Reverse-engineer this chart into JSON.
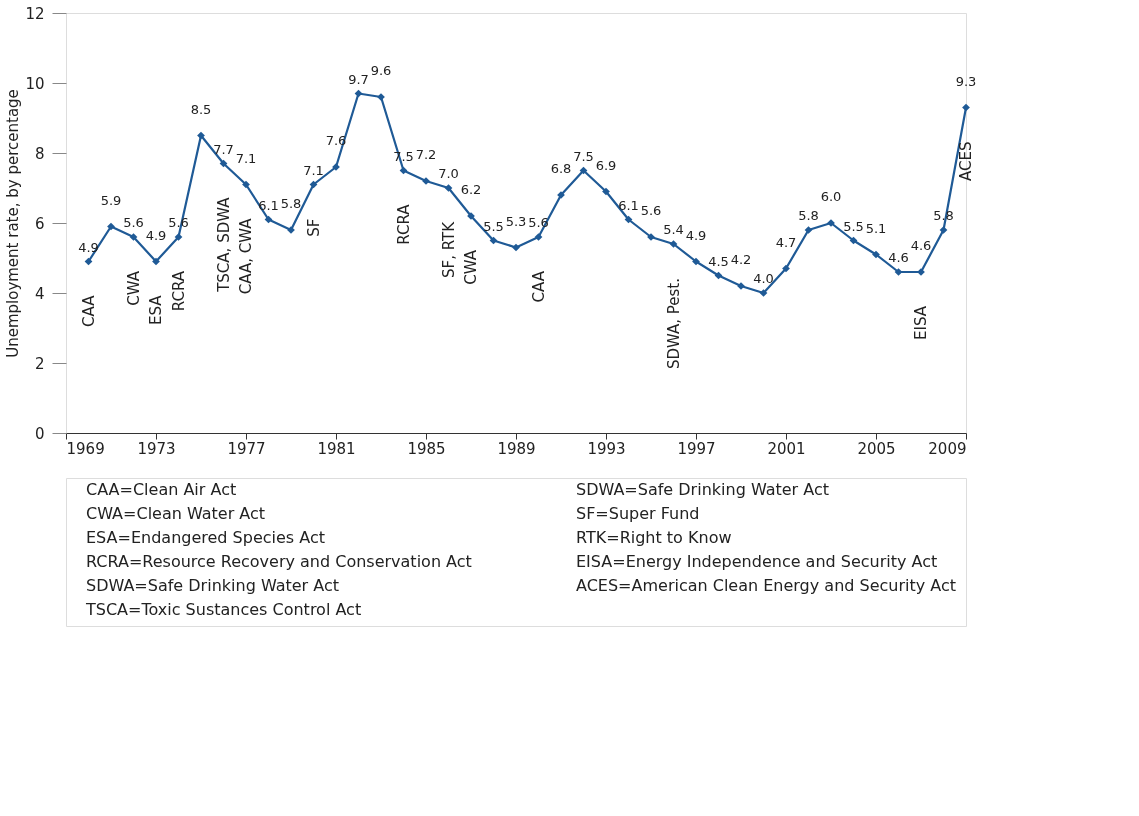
{
  "chart_data": {
    "type": "line",
    "ylabel": "Unemployment rate, by percentage",
    "x": [
      1970,
      1971,
      1972,
      1973,
      1974,
      1975,
      1976,
      1977,
      1978,
      1979,
      1980,
      1981,
      1982,
      1983,
      1984,
      1985,
      1986,
      1987,
      1988,
      1989,
      1990,
      1991,
      1992,
      1993,
      1994,
      1995,
      1996,
      1997,
      1998,
      1999,
      2000,
      2001,
      2002,
      2003,
      2004,
      2005,
      2006,
      2007,
      2008,
      2009
    ],
    "series": [
      {
        "color": "#1f5a96",
        "values": [
          4.9,
          5.9,
          5.6,
          4.9,
          5.6,
          8.5,
          7.7,
          7.1,
          6.1,
          5.8,
          7.1,
          7.6,
          9.7,
          9.6,
          7.5,
          7.2,
          7.0,
          6.2,
          5.5,
          5.3,
          5.6,
          6.8,
          7.5,
          6.9,
          6.1,
          5.6,
          5.4,
          4.9,
          4.5,
          4.2,
          4.0,
          4.7,
          5.8,
          6.0,
          5.5,
          5.1,
          4.6,
          4.6,
          5.8,
          9.3
        ],
        "value_labels": [
          "4.9",
          "5.9",
          "5.6",
          "4.9",
          "5.6",
          "8.5",
          "7.7",
          "7.1",
          "6.1",
          "5.8",
          "7.1",
          "7.6",
          "9.7",
          "9.6",
          "7.5",
          "7.2",
          "7.0",
          "6.2",
          "5.5",
          "5.3",
          "5.6",
          "6.8",
          "7.5",
          "6.9",
          "6.1",
          "5.6",
          "5.4",
          "4.9",
          "4.5",
          "4.2",
          "4.0",
          "4.7",
          "5.8",
          "6.0",
          "5.5",
          "5.1",
          "4.6",
          "4.6",
          "5.8",
          "9.3"
        ]
      }
    ],
    "xlim": [
      1969,
      2009
    ],
    "xticks": [
      1969,
      1973,
      1977,
      1981,
      1985,
      1989,
      1993,
      1997,
      2001,
      2005,
      2009
    ],
    "ylim": [
      0,
      12
    ],
    "yticks": [
      0,
      2,
      4,
      6,
      8,
      10,
      12
    ],
    "grid": false,
    "marker": "diamond",
    "line_style": "solid",
    "annotations": [
      {
        "text": "CAA",
        "x": 1970,
        "y": 4.9
      },
      {
        "text": "CWA",
        "x": 1972,
        "y": 5.6
      },
      {
        "text": "ESA",
        "x": 1973,
        "y": 4.9
      },
      {
        "text": "RCRA",
        "x": 1974,
        "y": 5.6
      },
      {
        "text": "TSCA, SDWA",
        "x": 1976,
        "y": 7.7
      },
      {
        "text": "CAA, CWA",
        "x": 1977,
        "y": 7.1
      },
      {
        "text": "SF",
        "x": 1980,
        "y": 7.1
      },
      {
        "text": "RCRA",
        "x": 1984,
        "y": 7.5
      },
      {
        "text": "SF, RTK",
        "x": 1986,
        "y": 7.0
      },
      {
        "text": "CWA",
        "x": 1987,
        "y": 6.2
      },
      {
        "text": "CAA",
        "x": 1990,
        "y": 5.6
      },
      {
        "text": "SDWA, Pest.",
        "x": 1996,
        "y": 5.4
      },
      {
        "text": "EISA",
        "x": 2007,
        "y": 4.6
      },
      {
        "text": "ACES",
        "x": 2009,
        "y": 9.3
      },
      "CAA=Clean Air Act",
      "CWA=Clean Water Act",
      "ESA=Endangered Species Act",
      "RCRA=Resource Recovery and Conservation Act",
      "SDWA=Safe Drinking Water Act",
      "TSCA=Toxic Sustances Control Act",
      "SDWA=Safe Drinking Water Act",
      "SF=Super Fund",
      "RTK=Right to Know",
      "EISA=Energy Independence and Security Act",
      "ACES=American Clean Energy and Security Act"
    ]
  }
}
